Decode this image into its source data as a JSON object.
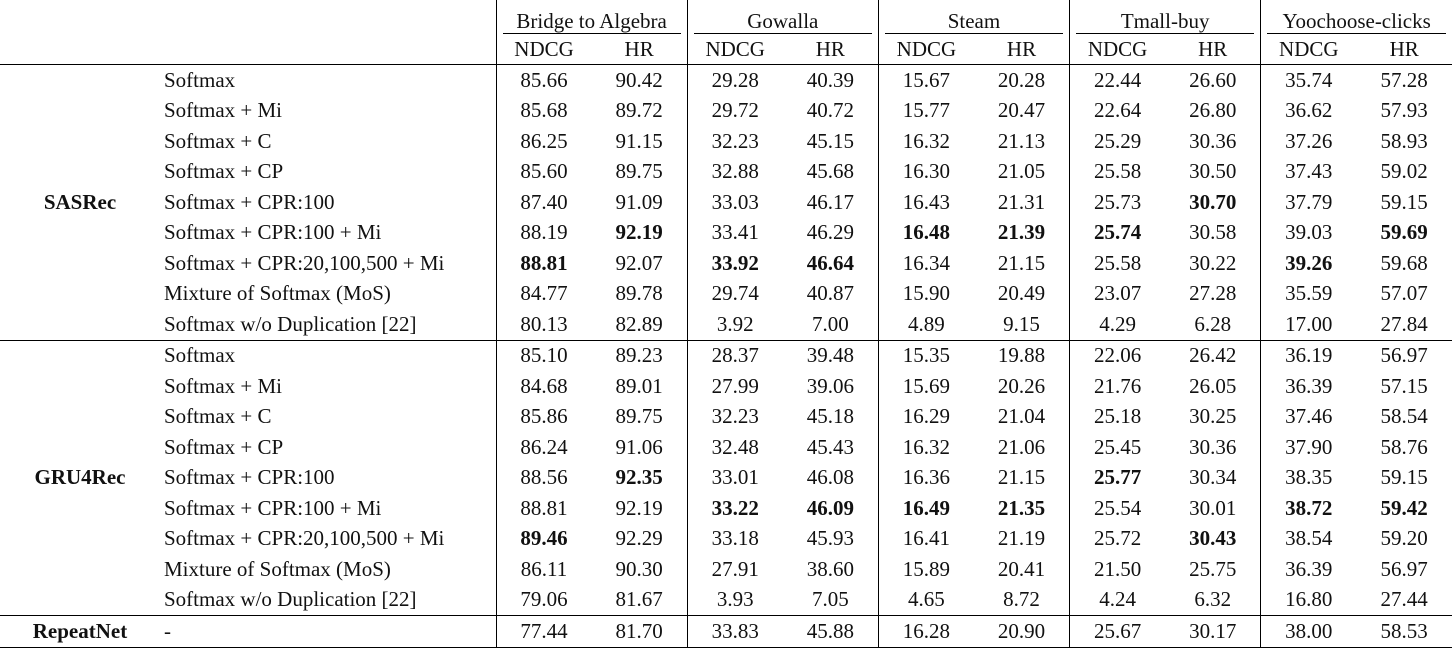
{
  "datasets": [
    "Bridge to Algebra",
    "Gowalla",
    "Steam",
    "Tmall-buy",
    "Yoochoose-clicks"
  ],
  "metrics": [
    "NDCG",
    "HR"
  ],
  "groups": [
    {
      "model": "SASRec",
      "rows": [
        {
          "method": "Softmax",
          "values": [
            "85.66",
            "90.42",
            "29.28",
            "40.39",
            "15.67",
            "20.28",
            "22.44",
            "26.60",
            "35.74",
            "57.28"
          ],
          "bold": []
        },
        {
          "method": "Softmax + Mi",
          "values": [
            "85.68",
            "89.72",
            "29.72",
            "40.72",
            "15.77",
            "20.47",
            "22.64",
            "26.80",
            "36.62",
            "57.93"
          ],
          "bold": []
        },
        {
          "method": "Softmax + C",
          "values": [
            "86.25",
            "91.15",
            "32.23",
            "45.15",
            "16.32",
            "21.13",
            "25.29",
            "30.36",
            "37.26",
            "58.93"
          ],
          "bold": []
        },
        {
          "method": "Softmax + CP",
          "values": [
            "85.60",
            "89.75",
            "32.88",
            "45.68",
            "16.30",
            "21.05",
            "25.58",
            "30.50",
            "37.43",
            "59.02"
          ],
          "bold": []
        },
        {
          "method": "Softmax + CPR:100",
          "values": [
            "87.40",
            "91.09",
            "33.03",
            "46.17",
            "16.43",
            "21.31",
            "25.73",
            "30.70",
            "37.79",
            "59.15"
          ],
          "bold": [
            7
          ]
        },
        {
          "method": "Softmax + CPR:100 + Mi",
          "values": [
            "88.19",
            "92.19",
            "33.41",
            "46.29",
            "16.48",
            "21.39",
            "25.74",
            "30.58",
            "39.03",
            "59.69"
          ],
          "bold": [
            1,
            4,
            5,
            6,
            9
          ]
        },
        {
          "method": "Softmax + CPR:20,100,500 + Mi",
          "values": [
            "88.81",
            "92.07",
            "33.92",
            "46.64",
            "16.34",
            "21.15",
            "25.58",
            "30.22",
            "39.26",
            "59.68"
          ],
          "bold": [
            0,
            2,
            3,
            8
          ]
        },
        {
          "method": "Mixture of Softmax (MoS)",
          "values": [
            "84.77",
            "89.78",
            "29.74",
            "40.87",
            "15.90",
            "20.49",
            "23.07",
            "27.28",
            "35.59",
            "57.07"
          ],
          "bold": []
        },
        {
          "method": "Softmax w/o Duplication [22]",
          "values": [
            "80.13",
            "82.89",
            "3.92",
            "7.00",
            "4.89",
            "9.15",
            "4.29",
            "6.28",
            "17.00",
            "27.84"
          ],
          "bold": []
        }
      ]
    },
    {
      "model": "GRU4Rec",
      "rows": [
        {
          "method": "Softmax",
          "values": [
            "85.10",
            "89.23",
            "28.37",
            "39.48",
            "15.35",
            "19.88",
            "22.06",
            "26.42",
            "36.19",
            "56.97"
          ],
          "bold": []
        },
        {
          "method": "Softmax + Mi",
          "values": [
            "84.68",
            "89.01",
            "27.99",
            "39.06",
            "15.69",
            "20.26",
            "21.76",
            "26.05",
            "36.39",
            "57.15"
          ],
          "bold": []
        },
        {
          "method": "Softmax + C",
          "values": [
            "85.86",
            "89.75",
            "32.23",
            "45.18",
            "16.29",
            "21.04",
            "25.18",
            "30.25",
            "37.46",
            "58.54"
          ],
          "bold": []
        },
        {
          "method": "Softmax + CP",
          "values": [
            "86.24",
            "91.06",
            "32.48",
            "45.43",
            "16.32",
            "21.06",
            "25.45",
            "30.36",
            "37.90",
            "58.76"
          ],
          "bold": []
        },
        {
          "method": "Softmax + CPR:100",
          "values": [
            "88.56",
            "92.35",
            "33.01",
            "46.08",
            "16.36",
            "21.15",
            "25.77",
            "30.34",
            "38.35",
            "59.15"
          ],
          "bold": [
            1,
            6
          ]
        },
        {
          "method": "Softmax + CPR:100 + Mi",
          "values": [
            "88.81",
            "92.19",
            "33.22",
            "46.09",
            "16.49",
            "21.35",
            "25.54",
            "30.01",
            "38.72",
            "59.42"
          ],
          "bold": [
            2,
            3,
            4,
            5,
            8,
            9
          ]
        },
        {
          "method": "Softmax + CPR:20,100,500 + Mi",
          "values": [
            "89.46",
            "92.29",
            "33.18",
            "45.93",
            "16.41",
            "21.19",
            "25.72",
            "30.43",
            "38.54",
            "59.20"
          ],
          "bold": [
            0,
            7
          ]
        },
        {
          "method": "Mixture of Softmax (MoS)",
          "values": [
            "86.11",
            "90.30",
            "27.91",
            "38.60",
            "15.89",
            "20.41",
            "21.50",
            "25.75",
            "36.39",
            "56.97"
          ],
          "bold": []
        },
        {
          "method": "Softmax w/o Duplication [22]",
          "values": [
            "79.06",
            "81.67",
            "3.93",
            "7.05",
            "4.65",
            "8.72",
            "4.24",
            "6.32",
            "16.80",
            "27.44"
          ],
          "bold": []
        }
      ]
    },
    {
      "model": "RepeatNet",
      "rows": [
        {
          "method": "-",
          "values": [
            "77.44",
            "81.70",
            "33.83",
            "45.88",
            "16.28",
            "20.90",
            "25.67",
            "30.17",
            "38.00",
            "58.53"
          ],
          "bold": []
        }
      ]
    }
  ]
}
